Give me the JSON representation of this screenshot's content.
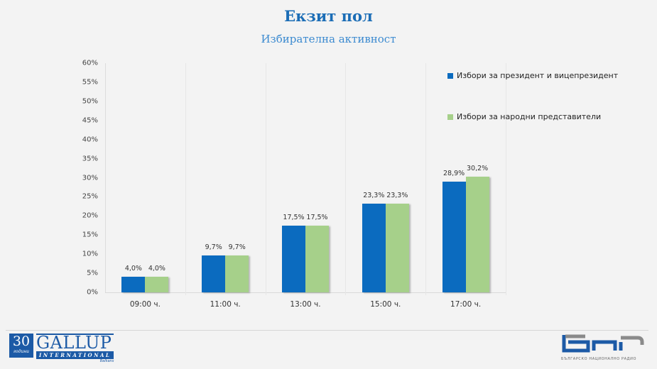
{
  "header": {
    "title": "Екзит пол",
    "subtitle": "Избирателна активност"
  },
  "legend": {
    "items": [
      {
        "label": "Избори за президент и вицепрезидент",
        "color": "#0b6bbf"
      },
      {
        "label": "Избори за народни представители",
        "color": "#a6d08a"
      }
    ]
  },
  "y_axis": {
    "ticks": [
      "60%",
      "55%",
      "50%",
      "45%",
      "40%",
      "35%",
      "30%",
      "25%",
      "20%",
      "15%",
      "10%",
      "5%",
      "0%"
    ]
  },
  "chart_data": {
    "type": "bar",
    "title": "Екзит пол",
    "subtitle": "Избирателна активност",
    "xlabel": "",
    "ylabel": "",
    "ylim": [
      0,
      60
    ],
    "y_ticks": [
      "0%",
      "5%",
      "10%",
      "15%",
      "20%",
      "25%",
      "30%",
      "35%",
      "40%",
      "45%",
      "50%",
      "55%",
      "60%"
    ],
    "grid": "vertical separators between categories",
    "legend_position": "right",
    "categories": [
      "09:00 ч.",
      "11:00 ч.",
      "13:00 ч.",
      "15:00 ч.",
      "17:00 ч."
    ],
    "series": [
      {
        "name": "Избори за президент и вицепрезидент",
        "color": "#0b6bbf",
        "values": [
          4.0,
          9.7,
          17.5,
          23.3,
          28.9
        ],
        "labels": [
          "4,0%",
          "9,7%",
          "17,5%",
          "23,3%",
          "28,9%"
        ]
      },
      {
        "name": "Избори за народни представители",
        "color": "#a6d08a",
        "values": [
          4.0,
          9.7,
          17.5,
          23.3,
          30.2
        ],
        "labels": [
          "4,0%",
          "9,7%",
          "17,5%",
          "23,3%",
          "30,2%"
        ]
      }
    ]
  },
  "footer": {
    "gallup": {
      "badge_number": "30",
      "badge_sub": "години",
      "name": "GALLUP",
      "tagline": "INTERNATIONAL",
      "region": "Balkans"
    },
    "bnr": {
      "logo_text": "бнр",
      "subtitle": "БЪЛГАРСКО НАЦИОНАЛНО РАДИО"
    }
  }
}
